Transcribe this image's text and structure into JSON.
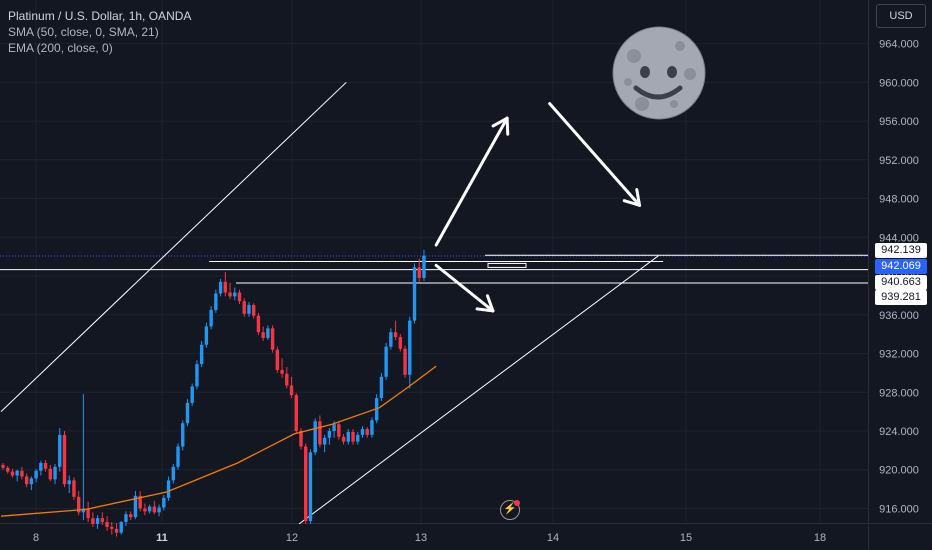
{
  "legend": {
    "title": "Platinum / U.S. Dollar, 1h, OANDA",
    "sma": "SMA (50, close, 0, SMA, 21)",
    "ema": "EMA (200, close, 0)"
  },
  "currency_button": "USD",
  "price_tags": {
    "p942139": "942.139",
    "p942069": "942.069",
    "p940663": "940.663",
    "p939281": "939.281"
  },
  "colors": {
    "background": "#131722",
    "up": "#2196f3",
    "down": "#f23645",
    "ema": "#f57c00",
    "grid": "#1e222d",
    "axis_text": "#b2b5be"
  },
  "icons": {
    "moon": "moon-face-emoji",
    "bolt": "lightning-bolt-icon"
  },
  "chart_data": {
    "type": "candlestick",
    "title": "Platinum / U.S. Dollar, 1h, OANDA",
    "yticks": [
      916,
      920,
      924,
      928,
      932,
      936,
      940,
      944,
      948,
      952,
      956,
      960,
      964
    ],
    "ylabels": [
      "916.000",
      "920.000",
      "924.000",
      "928.000",
      "932.000",
      "936.000",
      "940.000",
      "944.000",
      "948.000",
      "952.000",
      "956.000",
      "960.000",
      "964.000"
    ],
    "ylim": [
      914.5,
      968.5
    ],
    "xlabels": [
      "8",
      "11",
      "12",
      "13",
      "14",
      "15",
      "18"
    ],
    "xlabels_bold": [
      "11"
    ],
    "grid": true,
    "candles": [
      [
        920.5,
        920.7,
        920.0,
        920.2
      ],
      [
        920.2,
        920.4,
        919.6,
        919.8
      ],
      [
        919.8,
        920.1,
        919.2,
        919.4
      ],
      [
        919.4,
        920.0,
        918.8,
        919.9
      ],
      [
        919.9,
        920.3,
        919.0,
        919.3
      ],
      [
        919.3,
        919.6,
        918.2,
        918.5
      ],
      [
        918.5,
        919.3,
        917.9,
        919.1
      ],
      [
        919.1,
        920.1,
        918.7,
        919.9
      ],
      [
        919.9,
        920.9,
        919.4,
        920.7
      ],
      [
        920.7,
        921.0,
        919.8,
        920.1
      ],
      [
        920.1,
        920.5,
        918.8,
        919.0
      ],
      [
        919.0,
        920.6,
        918.5,
        920.3
      ],
      [
        920.3,
        924.3,
        919.8,
        923.6
      ],
      [
        923.6,
        924.0,
        918.2,
        918.5
      ],
      [
        918.5,
        919.4,
        917.6,
        918.9
      ],
      [
        918.9,
        919.2,
        916.9,
        917.2
      ],
      [
        917.2,
        917.8,
        915.3,
        915.6
      ],
      [
        915.6,
        927.8,
        914.8,
        916.0
      ],
      [
        916.0,
        916.7,
        914.6,
        915.0
      ],
      [
        915.0,
        915.6,
        914.1,
        914.4
      ],
      [
        914.4,
        915.3,
        913.9,
        915.0
      ],
      [
        915.0,
        915.6,
        914.3,
        914.6
      ],
      [
        914.6,
        915.2,
        913.7,
        914.1
      ],
      [
        914.1,
        914.6,
        913.3,
        913.9
      ],
      [
        913.9,
        914.5,
        913.1,
        913.5
      ],
      [
        913.5,
        914.7,
        913.3,
        914.6
      ],
      [
        914.6,
        915.7,
        914.2,
        915.4
      ],
      [
        915.4,
        915.7,
        914.8,
        915.1
      ],
      [
        915.1,
        917.8,
        914.9,
        917.3
      ],
      [
        917.3,
        917.8,
        915.7,
        916.0
      ],
      [
        916.0,
        916.5,
        915.3,
        915.7
      ],
      [
        915.7,
        916.4,
        915.5,
        916.2
      ],
      [
        916.2,
        916.8,
        915.4,
        915.6
      ],
      [
        915.6,
        916.4,
        915.2,
        916.1
      ],
      [
        916.1,
        917.4,
        915.8,
        917.1
      ],
      [
        917.1,
        919.3,
        916.8,
        918.9
      ],
      [
        918.9,
        920.6,
        918.6,
        920.3
      ],
      [
        920.3,
        922.7,
        920.0,
        922.4
      ],
      [
        922.4,
        925.1,
        922.0,
        924.8
      ],
      [
        924.8,
        927.3,
        924.5,
        926.9
      ],
      [
        926.9,
        928.9,
        926.6,
        928.6
      ],
      [
        928.6,
        931.3,
        928.3,
        930.9
      ],
      [
        930.9,
        933.3,
        930.6,
        932.9
      ],
      [
        932.9,
        935.2,
        932.6,
        934.8
      ],
      [
        934.8,
        936.9,
        934.5,
        936.5
      ],
      [
        936.5,
        938.6,
        936.2,
        938.2
      ],
      [
        938.2,
        939.7,
        937.9,
        939.4
      ],
      [
        939.4,
        940.4,
        937.9,
        938.3
      ],
      [
        938.3,
        939.3,
        937.6,
        937.9
      ],
      [
        937.9,
        938.8,
        937.5,
        938.3
      ],
      [
        938.3,
        938.6,
        937.1,
        937.4
      ],
      [
        937.4,
        937.7,
        935.8,
        936.1
      ],
      [
        936.1,
        937.3,
        935.8,
        937.0
      ],
      [
        937.0,
        937.2,
        935.6,
        935.9
      ],
      [
        935.9,
        936.2,
        933.9,
        934.2
      ],
      [
        934.2,
        934.8,
        933.3,
        933.6
      ],
      [
        933.6,
        934.9,
        933.4,
        934.6
      ],
      [
        934.6,
        934.9,
        932.1,
        932.4
      ],
      [
        932.4,
        932.7,
        930.0,
        930.3
      ],
      [
        930.3,
        931.5,
        929.5,
        929.9
      ],
      [
        929.9,
        930.6,
        928.4,
        928.7
      ],
      [
        928.7,
        929.6,
        927.4,
        927.7
      ],
      [
        927.7,
        927.9,
        923.7,
        924.0
      ],
      [
        924.0,
        924.3,
        922.1,
        922.4
      ],
      [
        922.4,
        922.7,
        914.4,
        914.7
      ],
      [
        914.7,
        922.1,
        914.4,
        921.8
      ],
      [
        921.8,
        925.3,
        921.5,
        925.0
      ],
      [
        925.0,
        925.6,
        922.3,
        922.6
      ],
      [
        922.6,
        923.6,
        921.8,
        923.3
      ],
      [
        923.3,
        924.3,
        922.6,
        924.0
      ],
      [
        924.0,
        925.0,
        923.3,
        924.7
      ],
      [
        924.7,
        925.0,
        923.1,
        923.4
      ],
      [
        923.4,
        923.7,
        922.6,
        922.9
      ],
      [
        922.9,
        924.2,
        922.6,
        923.9
      ],
      [
        923.9,
        924.2,
        922.6,
        922.9
      ],
      [
        922.9,
        923.9,
        922.6,
        923.6
      ],
      [
        923.6,
        924.5,
        923.3,
        924.2
      ],
      [
        924.2,
        924.4,
        923.3,
        923.6
      ],
      [
        923.6,
        925.4,
        923.3,
        925.1
      ],
      [
        925.1,
        927.8,
        924.8,
        927.4
      ],
      [
        927.4,
        930.0,
        927.1,
        929.6
      ],
      [
        929.6,
        933.1,
        929.3,
        932.7
      ],
      [
        932.7,
        934.6,
        932.4,
        934.2
      ],
      [
        934.2,
        935.4,
        933.4,
        933.7
      ],
      [
        933.7,
        934.0,
        932.2,
        932.5
      ],
      [
        932.5,
        932.8,
        929.5,
        929.8
      ],
      [
        929.8,
        935.8,
        928.4,
        935.4
      ],
      [
        935.4,
        941.3,
        935.1,
        940.9
      ],
      [
        940.9,
        941.8,
        939.4,
        939.8
      ],
      [
        939.8,
        942.7,
        939.5,
        942.1
      ]
    ],
    "ema": {
      "name": "EMA (200, close, 0)",
      "points": [
        [
          0,
          915.2
        ],
        [
          18,
          915.9
        ],
        [
          35,
          917.7
        ],
        [
          50,
          920.7
        ],
        [
          62,
          923.7
        ],
        [
          70,
          924.7
        ],
        [
          80,
          926.4
        ],
        [
          86,
          928.5
        ],
        [
          92,
          930.7
        ]
      ]
    },
    "levels": [
      942.139,
      942.069,
      940.663,
      939.281
    ],
    "trendlines": [
      {
        "from": [
          0,
          926.0
        ],
        "to": [
          73,
          960.0
        ]
      },
      {
        "from": [
          63,
          914.4
        ],
        "to": [
          139,
          942.1
        ]
      },
      {
        "from": [
          44,
          941.5
        ],
        "to": [
          140,
          941.5
        ]
      }
    ],
    "arrows": [
      {
        "from": [
          92,
          943.2
        ],
        "to": [
          107,
          956.3
        ]
      },
      {
        "from": [
          116,
          957.8
        ],
        "to": [
          135,
          947.3
        ]
      },
      {
        "from": [
          92,
          941.1
        ],
        "to": [
          104,
          936.4
        ]
      }
    ],
    "current_price": 942.069
  }
}
